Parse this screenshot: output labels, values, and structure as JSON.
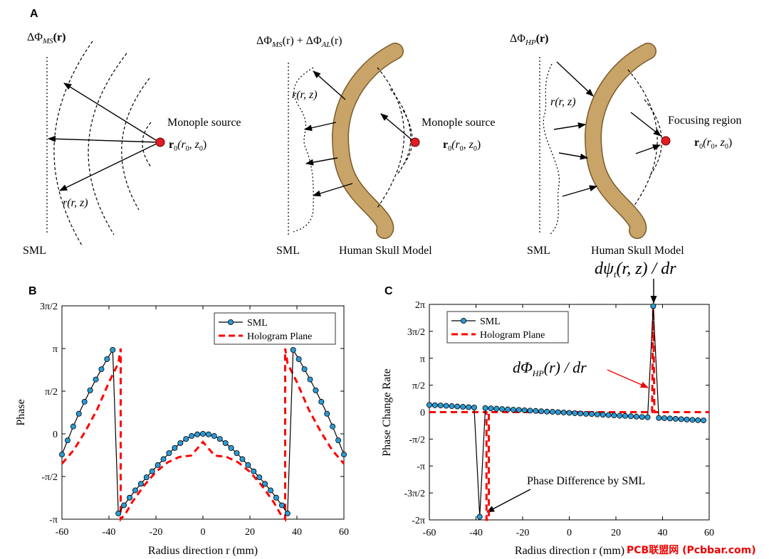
{
  "diagram": {
    "panel": "A",
    "left": {
      "formula": [
        "ΔΦ",
        "MS",
        "(r)"
      ],
      "source": "Monople source",
      "source_formula": [
        "r",
        "0",
        "(r",
        "0",
        ", z",
        "0",
        ")"
      ],
      "point": "r(r, z)",
      "sml": "SML"
    },
    "middle": {
      "formula": [
        "ΔΦ",
        "MS",
        "(r) + ΔΦ",
        "AL",
        "(r)"
      ],
      "source": "Monople source",
      "source_formula": [
        "r",
        "0",
        "(r",
        "0",
        ", z",
        "0",
        ")"
      ],
      "point": "r(r, z)",
      "sml": "SML",
      "skull": "Human Skull Model"
    },
    "right": {
      "formula": [
        "ΔΦ",
        "HP",
        "(r)"
      ],
      "source": "Focusing region",
      "source_formula": [
        "r",
        "0",
        "(r",
        "0",
        ", z",
        "0",
        ")"
      ],
      "point": "r(r, z)",
      "sml": "SML",
      "skull": "Human Skull Model"
    }
  },
  "chart_data": [
    {
      "type": "line",
      "panel": "B",
      "ylabel": "Phase",
      "xlabel": "Radius direction r (mm)",
      "xlim": [
        -60,
        60
      ],
      "xticks": [
        -60,
        -40,
        -20,
        0,
        20,
        40,
        60
      ],
      "ylim": [
        -3.14159,
        4.71239
      ],
      "yticks": [
        {
          "value": -3.14159,
          "label": "-π"
        },
        {
          "value": -1.5708,
          "label": "-π/2"
        },
        0,
        {
          "value": 1.5708,
          "label": "π/2"
        },
        {
          "value": 3.14159,
          "label": "π"
        },
        {
          "value": 4.71239,
          "label": "3π/2"
        }
      ],
      "legend": "northeast",
      "series": [
        {
          "name": "SML",
          "color": "#000000",
          "marker_color": "#2b9bd4",
          "x": [
            -60,
            -57.6,
            -55.2,
            -52.8,
            -50.4,
            -48,
            -45.6,
            -43.2,
            -40.8,
            -38.4,
            -36,
            -33.6,
            -31.2,
            -28.8,
            -26.4,
            -24,
            -21.6,
            -19.2,
            -16.8,
            -14.4,
            -12,
            -9.6,
            -7.2,
            -4.8,
            -2.4,
            0,
            2.4,
            4.8,
            7.2,
            9.6,
            12,
            14.4,
            16.8,
            19.2,
            21.6,
            24,
            26.4,
            28.8,
            31.2,
            33.6,
            36,
            38.4,
            40.8,
            43.2,
            45.6,
            48,
            50.4,
            52.8,
            55.2,
            57.6,
            60
          ],
          "values": [
            -0.76,
            -0.24,
            0.27,
            0.74,
            1.18,
            1.6,
            2.0,
            2.38,
            2.75,
            3.09,
            -2.93,
            -2.63,
            -2.35,
            -2.08,
            -1.84,
            -1.6,
            -1.38,
            -1.15,
            -0.93,
            -0.71,
            -0.52,
            -0.34,
            -0.19,
            -0.08,
            -0.02,
            0,
            -0.02,
            -0.08,
            -0.19,
            -0.34,
            -0.52,
            -0.71,
            -0.93,
            -1.15,
            -1.38,
            -1.6,
            -1.84,
            -2.08,
            -2.35,
            -2.63,
            -2.93,
            3.09,
            2.75,
            2.38,
            2.0,
            1.6,
            1.18,
            0.74,
            0.27,
            -0.24,
            -0.76
          ]
        },
        {
          "name": "Hologram Plane",
          "color": "#ff0000",
          "dashed": true,
          "x": [
            -60,
            -55,
            -50,
            -45,
            -40,
            -36,
            -35,
            -35,
            -33,
            -30,
            -25,
            -20,
            -15,
            -10,
            -5,
            -2,
            0,
            2,
            5,
            10,
            15,
            20,
            25,
            30,
            33,
            35,
            35,
            36,
            40,
            45,
            50,
            55,
            60
          ],
          "values": [
            -1.1,
            -0.6,
            0.1,
            0.9,
            1.9,
            2.6,
            3.14,
            -3.14,
            -2.95,
            -2.5,
            -1.9,
            -1.4,
            -1.05,
            -0.85,
            -0.8,
            -0.5,
            -0.3,
            -0.5,
            -0.8,
            -0.85,
            -1.05,
            -1.4,
            -1.9,
            -2.5,
            -2.95,
            -3.14,
            3.14,
            2.6,
            1.9,
            0.9,
            0.1,
            -0.6,
            -1.1
          ]
        }
      ]
    },
    {
      "type": "line",
      "panel": "C",
      "ylabel": "Phase Change Rate",
      "xlabel": "Radius direction r (mm)",
      "xlim": [
        -60,
        60
      ],
      "xticks": [
        -60,
        -40,
        -20,
        0,
        20,
        40,
        60
      ],
      "ylim": [
        -6.28319,
        6.28319
      ],
      "yticks": [
        {
          "value": -6.28319,
          "label": "-2π"
        },
        {
          "value": -4.71239,
          "label": "-3π/2"
        },
        {
          "value": -3.14159,
          "label": "-π"
        },
        {
          "value": -1.5708,
          "label": "-π/2"
        },
        0,
        {
          "value": 1.5708,
          "label": "π/2"
        },
        {
          "value": 3.14159,
          "label": "π"
        },
        {
          "value": 4.71239,
          "label": "3π/2"
        },
        {
          "value": 6.28319,
          "label": "2π"
        }
      ],
      "legend": "northwest",
      "annotations": {
        "peak": [
          "dψ",
          "t",
          "(r, z) / dr"
        ],
        "hologram": [
          "dΦ",
          "HP",
          "(r) / dr"
        ],
        "sml": "Phase Difference by SML"
      },
      "series": [
        {
          "name": "SML",
          "color": "#000000",
          "marker_color": "#2b9bd4",
          "x": [
            -60,
            -57.6,
            -55.2,
            -52.8,
            -50.4,
            -48,
            -45.6,
            -43.2,
            -40.8,
            -38.4,
            -36,
            -33.6,
            -31.2,
            -28.8,
            -26.4,
            -24,
            -21.6,
            -19.2,
            -16.8,
            -14.4,
            -12,
            -9.6,
            -7.2,
            -4.8,
            -2.4,
            0,
            2.4,
            4.8,
            7.2,
            9.6,
            12,
            14.4,
            16.8,
            19.2,
            21.6,
            24,
            26.4,
            28.8,
            31.2,
            33.6,
            36,
            38.4,
            40.8,
            43.2,
            45.6,
            48,
            50.4,
            52.8,
            55.2,
            57.6
          ],
          "values": [
            0.42,
            0.4,
            0.39,
            0.37,
            0.35,
            0.33,
            0.31,
            0.29,
            0.27,
            -6.1,
            0.24,
            0.22,
            0.2,
            0.18,
            0.16,
            0.14,
            0.13,
            0.11,
            0.09,
            0.07,
            0.05,
            0.03,
            0.02,
            0.0,
            -0.02,
            -0.04,
            -0.06,
            -0.08,
            -0.1,
            -0.11,
            -0.13,
            -0.15,
            -0.17,
            -0.19,
            -0.21,
            -0.22,
            -0.24,
            -0.26,
            -0.28,
            -0.3,
            6.18,
            -0.34,
            -0.35,
            -0.37,
            -0.39,
            -0.41,
            -0.43,
            -0.45,
            -0.47,
            -0.48
          ]
        },
        {
          "name": "Hologram Plane",
          "color": "#ff0000",
          "dashed": true,
          "x": [
            -60,
            -35.5,
            -35.5,
            -34.5,
            -34.5,
            35.5,
            36,
            36.5,
            60
          ],
          "values": [
            0,
            0,
            -6.28,
            -6.28,
            0,
            0,
            6.28,
            0,
            0
          ]
        }
      ]
    }
  ],
  "watermark": "PCB联盟网 (Pcbbar.com)"
}
